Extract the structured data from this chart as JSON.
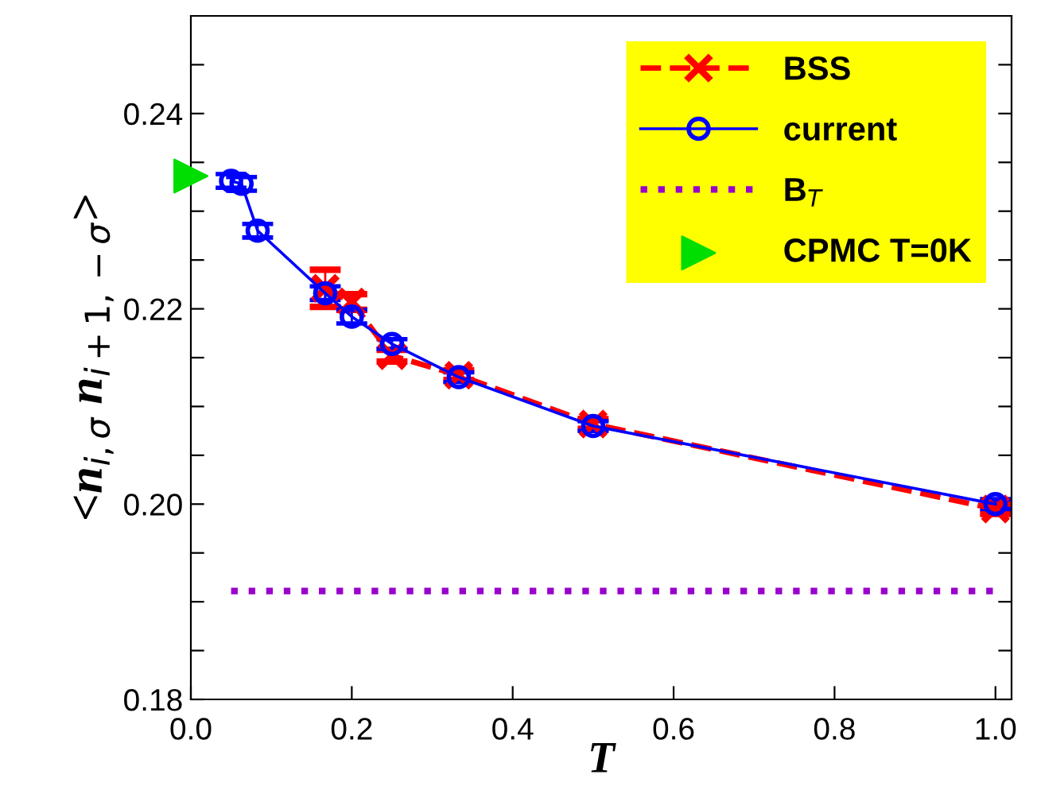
{
  "chart_data": {
    "type": "line",
    "xlabel": "T",
    "ylabel": "<n$_{i,σ}$ n$_{i+1,−σ}$>",
    "xlim": [
      0.0,
      1.02
    ],
    "ylim": [
      0.18,
      0.25
    ],
    "xticks": [
      {
        "value": 0.0,
        "label": "0.0"
      },
      {
        "value": 0.2,
        "label": "0.2"
      },
      {
        "value": 0.4,
        "label": "0.4"
      },
      {
        "value": 0.6,
        "label": "0.6"
      },
      {
        "value": 0.8,
        "label": "0.8"
      },
      {
        "value": 1.0,
        "label": "1.0"
      }
    ],
    "yticks": [
      {
        "value": 0.18,
        "label": "0.18"
      },
      {
        "value": 0.185,
        "label": null
      },
      {
        "value": 0.19,
        "label": null
      },
      {
        "value": 0.195,
        "label": null
      },
      {
        "value": 0.2,
        "label": "0.20"
      },
      {
        "value": 0.205,
        "label": null
      },
      {
        "value": 0.21,
        "label": null
      },
      {
        "value": 0.215,
        "label": null
      },
      {
        "value": 0.22,
        "label": "0.22"
      },
      {
        "value": 0.225,
        "label": null
      },
      {
        "value": 0.23,
        "label": null
      },
      {
        "value": 0.235,
        "label": null
      },
      {
        "value": 0.24,
        "label": "0.24"
      },
      {
        "value": 0.245,
        "label": null
      }
    ],
    "grid": false,
    "legend": "top right",
    "series": [
      {
        "name": "BSS",
        "color": "#ff0000",
        "marker": "cross",
        "line_style": "dashed",
        "x": [
          0.167,
          0.2,
          0.25,
          0.333,
          0.5,
          1.0
        ],
        "values": [
          0.2221,
          0.2207,
          0.2152,
          0.2132,
          0.2082,
          0.1995
        ],
        "errors": [
          0.0019,
          0.0008,
          0.0006,
          0.0005,
          0.0005,
          0.0005
        ]
      },
      {
        "name": "current",
        "color": "#0000ff",
        "marker": "circle",
        "line_style": "solid",
        "x": [
          0.05,
          0.063,
          0.083,
          0.167,
          0.2,
          0.25,
          0.333,
          0.5,
          1.0
        ],
        "values": [
          0.2331,
          0.2328,
          0.228,
          0.2216,
          0.2192,
          0.2164,
          0.213,
          0.208,
          0.2
        ],
        "errors": [
          0.0007,
          0.0007,
          0.0007,
          0.0007,
          0.0007,
          0.0005,
          0.0005,
          0.0005,
          0.0005
        ]
      },
      {
        "name": "B$_{T}$",
        "color": "#9900cc",
        "marker": "none",
        "line_style": "dotted",
        "x": [
          0.05,
          1.0
        ],
        "values": [
          0.1911,
          0.1911
        ]
      },
      {
        "name": "CPMC T=0K",
        "type": "scatter",
        "color": "#00dd00",
        "marker": "triangle",
        "x": [
          0.0
        ],
        "values": [
          0.2336
        ]
      }
    ]
  }
}
